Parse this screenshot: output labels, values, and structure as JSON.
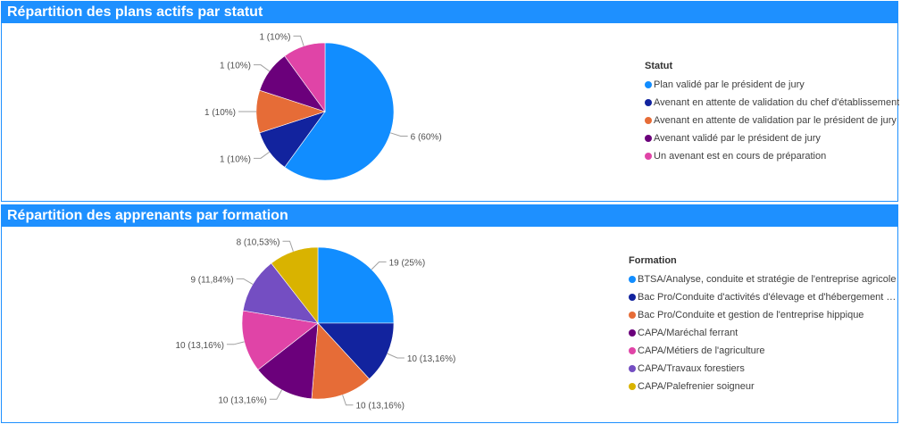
{
  "chart_data": [
    {
      "type": "pie",
      "title": "Répartition des plans actifs par statut",
      "legend_title": "Statut",
      "legend_position": "right",
      "slices": [
        {
          "label": "Plan validé par le président de jury",
          "value": 6,
          "data_label": "6 (60%)",
          "color": "#118dff"
        },
        {
          "label": "Avenant en attente de validation du chef d'établissement",
          "value": 1,
          "data_label": "1 (10%)",
          "color": "#12239e"
        },
        {
          "label": "Avenant en attente de validation par le président de jury",
          "value": 1,
          "data_label": "1 (10%)",
          "color": "#e66c37"
        },
        {
          "label": "Avenant validé par le président de jury",
          "value": 1,
          "data_label": "1 (10%)",
          "color": "#6b007b"
        },
        {
          "label": "Un avenant est en cours de préparation",
          "value": 1,
          "data_label": "1 (10%)",
          "color": "#e044a7"
        }
      ]
    },
    {
      "type": "pie",
      "title": "Répartition des apprenants par formation",
      "legend_title": "Formation",
      "legend_position": "right",
      "slices": [
        {
          "label": "BTSA/Analyse, conduite et stratégie de l'entreprise agricole",
          "value": 19,
          "data_label": "19 (25%)",
          "color": "#118dff"
        },
        {
          "label": "Bac Pro/Conduite d'activités d'élevage et d'hébergement d...",
          "value": 10,
          "data_label": "10 (13,16%)",
          "color": "#12239e"
        },
        {
          "label": "Bac Pro/Conduite et gestion de l'entreprise hippique",
          "value": 10,
          "data_label": "10 (13,16%)",
          "color": "#e66c37"
        },
        {
          "label": "CAPA/Maréchal ferrant",
          "value": 10,
          "data_label": "10 (13,16%)",
          "color": "#6b007b"
        },
        {
          "label": "CAPA/Métiers de l'agriculture",
          "value": 10,
          "data_label": "10 (13,16%)",
          "color": "#e044a7"
        },
        {
          "label": "CAPA/Travaux forestiers",
          "value": 9,
          "data_label": "9 (11,84%)",
          "color": "#744ec2"
        },
        {
          "label": "CAPA/Palefrenier soigneur",
          "value": 8,
          "data_label": "8 (10,53%)",
          "color": "#d9b300"
        }
      ]
    }
  ]
}
